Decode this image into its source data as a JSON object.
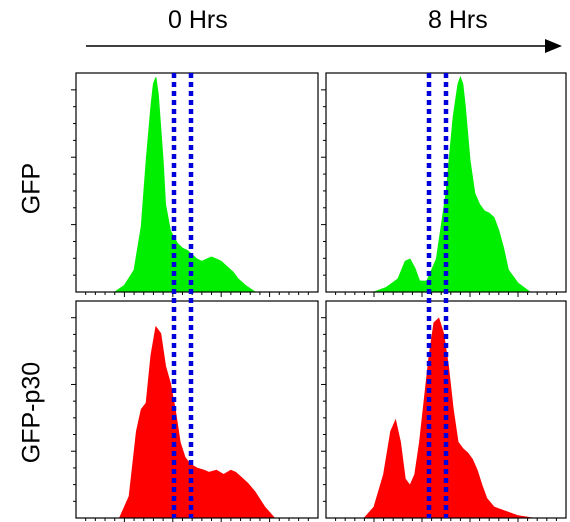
{
  "header": {
    "time_start": "0 Hrs",
    "time_end": "8 Hrs"
  },
  "rows": {
    "top": "GFP",
    "bottom": "GFP-p30"
  },
  "colors": {
    "gfp_fill": "#00ee00",
    "p30_fill": "#ff0000",
    "gate_line": "#0000dd",
    "axis": "#000000"
  },
  "chart_data": [
    {
      "type": "area",
      "panel": "GFP 0 Hrs",
      "color": "#00ee00",
      "x": [
        0.0,
        0.16,
        0.2,
        0.24,
        0.27,
        0.29,
        0.31,
        0.32,
        0.33,
        0.34,
        0.36,
        0.37,
        0.39,
        0.42,
        0.44,
        0.46,
        0.48,
        0.5,
        0.52,
        0.54,
        0.56,
        0.58,
        0.6,
        0.62,
        0.65,
        0.67,
        0.7,
        0.74,
        1.0
      ],
      "y": [
        0.0,
        0.0,
        0.03,
        0.1,
        0.3,
        0.6,
        0.85,
        0.95,
        0.98,
        0.9,
        0.6,
        0.4,
        0.28,
        0.22,
        0.2,
        0.19,
        0.17,
        0.15,
        0.14,
        0.15,
        0.16,
        0.15,
        0.14,
        0.12,
        0.09,
        0.06,
        0.03,
        0.0,
        0.0
      ]
    },
    {
      "type": "area",
      "panel": "GFP 8 Hrs",
      "color": "#00ee00",
      "x": [
        0.0,
        0.2,
        0.25,
        0.3,
        0.33,
        0.35,
        0.37,
        0.39,
        0.42,
        0.46,
        0.5,
        0.53,
        0.55,
        0.56,
        0.57,
        0.58,
        0.6,
        0.62,
        0.64,
        0.66,
        0.68,
        0.7,
        0.72,
        0.74,
        0.76,
        0.8,
        0.85,
        1.0
      ],
      "y": [
        0.0,
        0.0,
        0.02,
        0.06,
        0.14,
        0.15,
        0.11,
        0.05,
        0.05,
        0.15,
        0.45,
        0.8,
        0.95,
        0.98,
        0.95,
        0.85,
        0.6,
        0.45,
        0.4,
        0.37,
        0.36,
        0.34,
        0.28,
        0.2,
        0.1,
        0.04,
        0.0,
        0.0
      ]
    },
    {
      "type": "area",
      "panel": "GFP-p30 0 Hrs",
      "color": "#ff0000",
      "x": [
        0.0,
        0.18,
        0.22,
        0.25,
        0.27,
        0.29,
        0.31,
        0.33,
        0.35,
        0.37,
        0.39,
        0.41,
        0.43,
        0.45,
        0.47,
        0.5,
        0.53,
        0.55,
        0.58,
        0.61,
        0.64,
        0.66,
        0.68,
        0.71,
        0.74,
        0.78,
        0.82,
        1.0
      ],
      "y": [
        0.0,
        0.0,
        0.1,
        0.4,
        0.5,
        0.53,
        0.75,
        0.88,
        0.85,
        0.7,
        0.62,
        0.5,
        0.35,
        0.28,
        0.25,
        0.23,
        0.22,
        0.21,
        0.22,
        0.2,
        0.22,
        0.21,
        0.19,
        0.16,
        0.12,
        0.05,
        0.0,
        0.0
      ]
    },
    {
      "type": "area",
      "panel": "GFP-p30 8 Hrs",
      "color": "#ff0000",
      "x": [
        0.0,
        0.16,
        0.2,
        0.24,
        0.27,
        0.29,
        0.31,
        0.33,
        0.35,
        0.37,
        0.39,
        0.41,
        0.43,
        0.45,
        0.47,
        0.49,
        0.51,
        0.53,
        0.55,
        0.57,
        0.59,
        0.61,
        0.63,
        0.65,
        0.67,
        0.7,
        0.75,
        0.8,
        0.86,
        1.0
      ],
      "y": [
        0.0,
        0.0,
        0.05,
        0.2,
        0.4,
        0.45,
        0.35,
        0.18,
        0.15,
        0.2,
        0.35,
        0.55,
        0.75,
        0.9,
        0.92,
        0.85,
        0.7,
        0.5,
        0.35,
        0.32,
        0.3,
        0.27,
        0.22,
        0.15,
        0.09,
        0.05,
        0.03,
        0.01,
        0.0,
        0.0
      ]
    }
  ]
}
